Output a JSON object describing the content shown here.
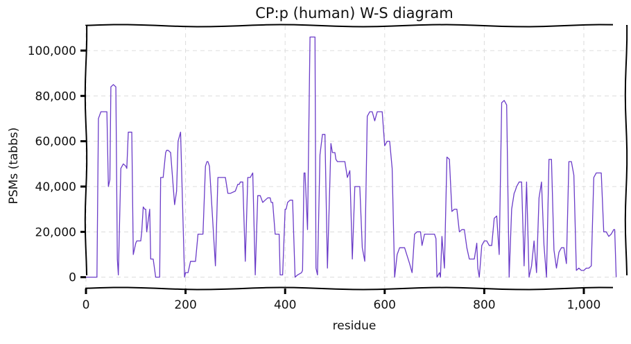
{
  "chart_data": {
    "type": "line",
    "title": "CP:p (human) W-S diagram",
    "xlabel": "residue",
    "ylabel": "PSMs (tabbs)",
    "xlim": [
      0,
      1085
    ],
    "ylim": [
      -5000,
      111000
    ],
    "grid": true,
    "x_ticks": [
      0,
      200,
      400,
      600,
      800,
      1000
    ],
    "x_tick_labels": [
      "0",
      "200",
      "400",
      "600",
      "800",
      "1,000"
    ],
    "y_ticks": [
      0,
      20000,
      40000,
      60000,
      80000,
      100000
    ],
    "y_tick_labels": [
      "0",
      "20,000",
      "40,000",
      "60,000",
      "80,000",
      "100,000"
    ],
    "colors": {
      "series": "#6a3bc8"
    },
    "series": [
      {
        "x": [
          0,
          22,
          25,
          30,
          35,
          42,
          45,
          48,
          50,
          55,
          60,
          63,
          65,
          70,
          75,
          80,
          82,
          85,
          88,
          92,
          95,
          100,
          102,
          105,
          110,
          112,
          115,
          118,
          120,
          122,
          128,
          130,
          135,
          140,
          148,
          150,
          152,
          155,
          160,
          162,
          165,
          170,
          178,
          180,
          182,
          185,
          190,
          198,
          200,
          202,
          205,
          210,
          220,
          225,
          230,
          232,
          235,
          240,
          243,
          245,
          248,
          260,
          265,
          280,
          285,
          290,
          300,
          305,
          308,
          310,
          312,
          315,
          320,
          325,
          330,
          335,
          340,
          345,
          350,
          355,
          360,
          365,
          370,
          372,
          375,
          380,
          388,
          390,
          393,
          395,
          400,
          402,
          405,
          410,
          415,
          420,
          425,
          433,
          435,
          438,
          440,
          445,
          450,
          455,
          460,
          462,
          465,
          470,
          475,
          480,
          485,
          490,
          492,
          495,
          500,
          502,
          505,
          510,
          520,
          525,
          530,
          535,
          540,
          550,
          555,
          560,
          565,
          570,
          575,
          580,
          585,
          590,
          595,
          600,
          605,
          610,
          615,
          620,
          625,
          630,
          635,
          640,
          650,
          655,
          660,
          665,
          670,
          672,
          675,
          680,
          690,
          700,
          703,
          705,
          710,
          712,
          715,
          720,
          725,
          730,
          735,
          740,
          745,
          750,
          755,
          760,
          765,
          770,
          775,
          780,
          785,
          787,
          790,
          795,
          800,
          805,
          810,
          815,
          820,
          825,
          830,
          835,
          840,
          845,
          850,
          855,
          860,
          862,
          865,
          870,
          875,
          880,
          885,
          890,
          895,
          900,
          905,
          910,
          915,
          920,
          925,
          930,
          935,
          940,
          945,
          950,
          955,
          960,
          965,
          970,
          975,
          980,
          985,
          990,
          995,
          1000,
          1005,
          1010,
          1015,
          1020,
          1025,
          1030,
          1035,
          1040,
          1045,
          1050,
          1055,
          1060,
          1062,
          1065
        ],
        "y": [
          0,
          0,
          70000,
          73000,
          73000,
          73000,
          40000,
          43000,
          84000,
          85000,
          84000,
          8000,
          1000,
          48000,
          50000,
          49000,
          48000,
          64000,
          64000,
          64000,
          10000,
          15000,
          16000,
          16000,
          16000,
          20000,
          31000,
          30000,
          30000,
          20000,
          30000,
          8000,
          8000,
          0,
          0,
          44000,
          44000,
          44000,
          55000,
          56000,
          56000,
          55000,
          32000,
          35000,
          38000,
          60000,
          64000,
          0,
          2000,
          2000,
          2000,
          7000,
          7000,
          19000,
          19000,
          19000,
          19000,
          49000,
          51000,
          51000,
          49000,
          5000,
          44000,
          44000,
          37000,
          37000,
          38000,
          41000,
          41000,
          42000,
          42000,
          42000,
          7000,
          44000,
          44000,
          46000,
          1000,
          36000,
          36000,
          33000,
          34000,
          35000,
          35000,
          33000,
          33000,
          19000,
          19000,
          1000,
          1000,
          1000,
          30000,
          30000,
          33000,
          34000,
          34000,
          0,
          1000,
          2000,
          3000,
          46000,
          46000,
          21000,
          106000,
          106000,
          106000,
          4000,
          1000,
          54000,
          63000,
          63000,
          4000,
          43000,
          59000,
          55000,
          55000,
          52000,
          51000,
          51000,
          51000,
          44000,
          47000,
          8000,
          40000,
          40000,
          13000,
          7000,
          71000,
          73000,
          73000,
          69000,
          73000,
          73000,
          73000,
          58000,
          60000,
          60000,
          48000,
          0,
          10000,
          13000,
          13000,
          13000,
          6000,
          2000,
          19000,
          20000,
          20000,
          20000,
          14000,
          19000,
          19000,
          19000,
          17000,
          0,
          2000,
          0,
          18000,
          4000,
          53000,
          52000,
          29000,
          30000,
          30000,
          20000,
          21000,
          21000,
          13000,
          8000,
          8000,
          8000,
          15000,
          4000,
          0,
          14000,
          16000,
          16000,
          14000,
          14000,
          26000,
          27000,
          10000,
          77000,
          78000,
          76000,
          0,
          30000,
          37000,
          38000,
          40000,
          42000,
          42000,
          5000,
          42000,
          0,
          5000,
          16000,
          2000,
          35000,
          42000,
          14000,
          0,
          52000,
          52000,
          12000,
          4000,
          11000,
          13000,
          13000,
          6000,
          51000,
          51000,
          45000,
          3000,
          4000,
          3000,
          3000,
          4000,
          4000,
          5000,
          44000,
          46000,
          46000,
          46000,
          20000,
          20000,
          18000,
          19000,
          21000,
          21000,
          0
        ]
      }
    ]
  }
}
